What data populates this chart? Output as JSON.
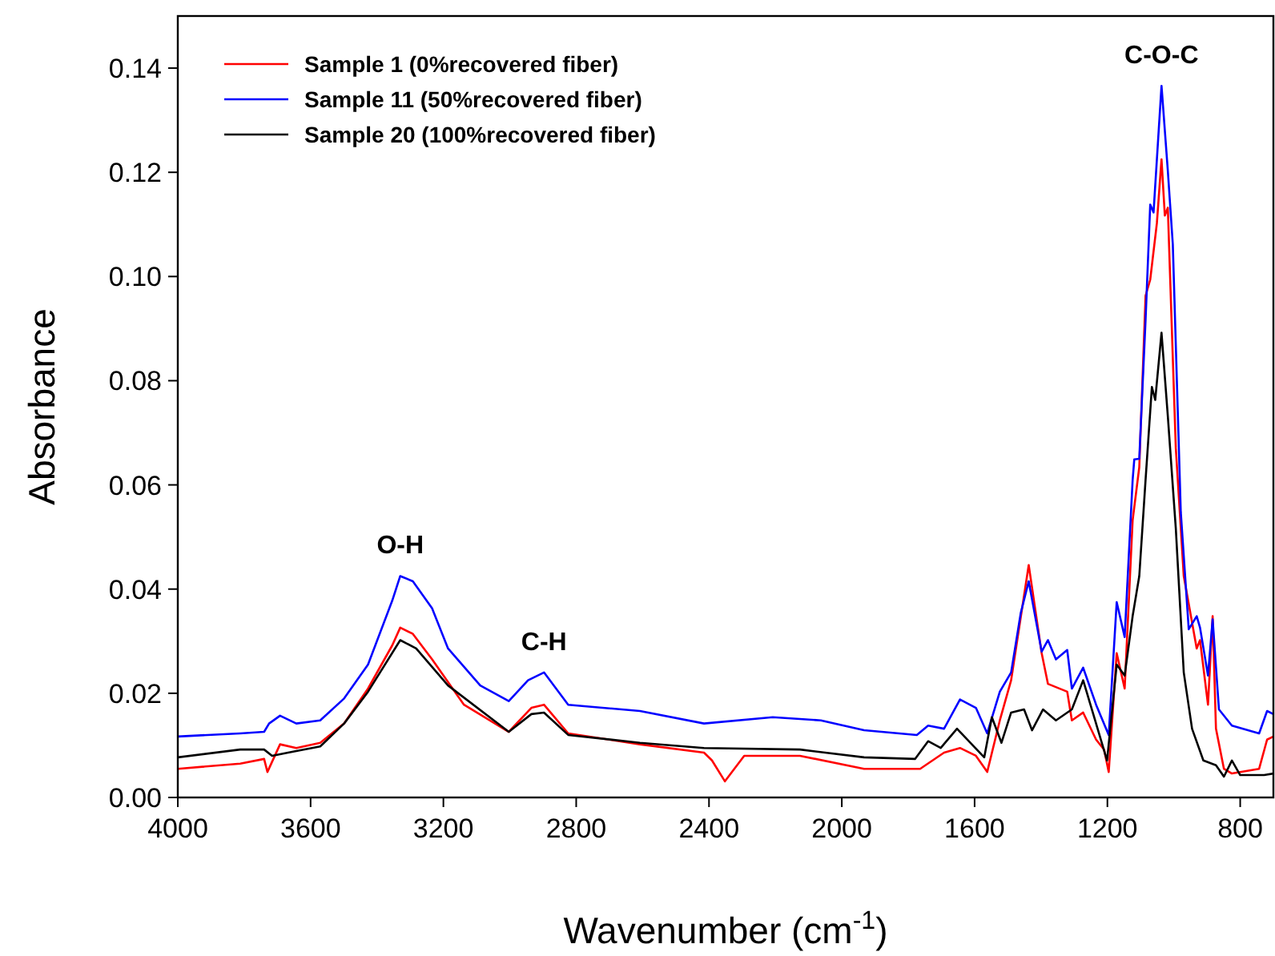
{
  "chart_data": {
    "type": "line",
    "xlabel": "Wavenumber (cm$^{-1}$)",
    "ylabel": "Absorbance",
    "xlim": [
      4000,
      700
    ],
    "ylim": [
      0,
      0.15
    ],
    "xticks": [
      4000,
      3600,
      3200,
      2800,
      2400,
      2000,
      1600,
      1200,
      800
    ],
    "yticks": [
      {
        "value": 0,
        "label": "0.00"
      },
      {
        "value": 0.02,
        "label": "0.02"
      },
      {
        "value": 0.04,
        "label": "0.04"
      },
      {
        "value": 0.06,
        "label": "0.06"
      },
      {
        "value": 0.08,
        "label": "0.08"
      },
      {
        "value": 0.1,
        "label": "0.10"
      },
      {
        "value": 0.12,
        "label": "0.12"
      },
      {
        "value": 0.14,
        "label": "0.14"
      }
    ],
    "grid": false,
    "legend": "top left",
    "marker": "none",
    "line_style": "solid",
    "annotations": [
      {
        "text": "O-H",
        "x": 3330,
        "y": 0.0425
      },
      {
        "text": "C-H",
        "x": 2897,
        "y": 0.024
      },
      {
        "text": "C-O-C",
        "x": 1037,
        "y": 0.1366
      }
    ],
    "series": [
      {
        "name": "Sample 1 (0%recovered fiber)",
        "color": "#ff0000",
        "x": [
          4000,
          3812,
          3740,
          3730,
          3692,
          3643,
          3571,
          3499,
          3427,
          3354,
          3330,
          3292,
          3234,
          3138,
          3003,
          2935,
          2897,
          2824,
          2608,
          2415,
          2391,
          2352,
          2294,
          2126,
          1933,
          1764,
          1692,
          1644,
          1596,
          1562,
          1524,
          1490,
          1437,
          1398,
          1379,
          1321,
          1307,
          1273,
          1234,
          1210,
          1196,
          1172,
          1148,
          1124,
          1104,
          1085,
          1071,
          1051,
          1037,
          1027,
          1018,
          994,
          970,
          931,
          921,
          897,
          883,
          873,
          849,
          825,
          743,
          719,
          700
        ],
        "values": [
          0.0055,
          0.0065,
          0.0074,
          0.0049,
          0.0102,
          0.0095,
          0.0105,
          0.0142,
          0.0209,
          0.0292,
          0.0326,
          0.0314,
          0.0265,
          0.0178,
          0.0126,
          0.0172,
          0.0178,
          0.0123,
          0.0102,
          0.0086,
          0.0071,
          0.0031,
          0.008,
          0.008,
          0.0055,
          0.0055,
          0.0086,
          0.0095,
          0.008,
          0.0049,
          0.0148,
          0.0225,
          0.0446,
          0.0277,
          0.0218,
          0.0203,
          0.0148,
          0.0163,
          0.0111,
          0.0092,
          0.0049,
          0.0277,
          0.0209,
          0.0532,
          0.0634,
          0.0963,
          0.0994,
          0.1102,
          0.1225,
          0.1117,
          0.1132,
          0.0671,
          0.0425,
          0.0286,
          0.0302,
          0.0178,
          0.0348,
          0.0132,
          0.0055,
          0.0046,
          0.0055,
          0.0111,
          0.0117
        ]
      },
      {
        "name": "Sample 11 (50%recovered fiber)",
        "color": "#0000ff",
        "x": [
          4000,
          3812,
          3740,
          3725,
          3692,
          3643,
          3571,
          3499,
          3427,
          3354,
          3330,
          3292,
          3234,
          3186,
          3089,
          3003,
          2945,
          2897,
          2824,
          2608,
          2415,
          2208,
          2063,
          1933,
          1774,
          1740,
          1692,
          1644,
          1596,
          1562,
          1524,
          1490,
          1461,
          1437,
          1398,
          1379,
          1355,
          1321,
          1307,
          1273,
          1234,
          1196,
          1172,
          1148,
          1124,
          1119,
          1104,
          1085,
          1071,
          1061,
          1037,
          1018,
          1003,
          979,
          955,
          931,
          921,
          897,
          883,
          864,
          825,
          743,
          719,
          700
        ],
        "values": [
          0.0117,
          0.0123,
          0.0126,
          0.0142,
          0.0157,
          0.0142,
          0.0148,
          0.019,
          0.0255,
          0.0378,
          0.0425,
          0.0415,
          0.0363,
          0.0286,
          0.0215,
          0.0185,
          0.0225,
          0.024,
          0.0178,
          0.0166,
          0.0142,
          0.0154,
          0.0148,
          0.0129,
          0.012,
          0.0138,
          0.0132,
          0.0188,
          0.0172,
          0.0123,
          0.0203,
          0.024,
          0.0354,
          0.0415,
          0.028,
          0.0302,
          0.0265,
          0.0283,
          0.0209,
          0.0249,
          0.0178,
          0.012,
          0.0375,
          0.0308,
          0.0609,
          0.0649,
          0.065,
          0.0917,
          0.1138,
          0.1123,
          0.1366,
          0.1203,
          0.1062,
          0.0548,
          0.0323,
          0.0348,
          0.0326,
          0.0234,
          0.0342,
          0.0169,
          0.0138,
          0.0123,
          0.0166,
          0.016
        ]
      },
      {
        "name": "Sample 20 (100%recovered fiber)",
        "color": "#000000",
        "x": [
          4000,
          3812,
          3740,
          3716,
          3668,
          3571,
          3499,
          3427,
          3330,
          3282,
          3186,
          3003,
          2935,
          2897,
          2824,
          2608,
          2415,
          2126,
          1933,
          1779,
          1740,
          1702,
          1653,
          1571,
          1548,
          1519,
          1490,
          1451,
          1427,
          1394,
          1355,
          1307,
          1273,
          1244,
          1201,
          1172,
          1148,
          1124,
          1104,
          1085,
          1066,
          1056,
          1037,
          1018,
          994,
          970,
          945,
          911,
          873,
          849,
          825,
          800,
          728,
          700
        ],
        "values": [
          0.0077,
          0.0092,
          0.0092,
          0.008,
          0.0086,
          0.0098,
          0.0142,
          0.0203,
          0.0302,
          0.0286,
          0.0215,
          0.0126,
          0.016,
          0.0163,
          0.012,
          0.0105,
          0.0095,
          0.0092,
          0.0077,
          0.0074,
          0.0108,
          0.0095,
          0.0132,
          0.0077,
          0.0154,
          0.0105,
          0.0163,
          0.0169,
          0.0129,
          0.0169,
          0.0148,
          0.0169,
          0.0225,
          0.0163,
          0.0071,
          0.0255,
          0.0234,
          0.0348,
          0.0425,
          0.061,
          0.0788,
          0.0763,
          0.0892,
          0.0732,
          0.0517,
          0.024,
          0.0132,
          0.0071,
          0.0062,
          0.004,
          0.0071,
          0.0043,
          0.0043,
          0.0046
        ]
      }
    ]
  }
}
